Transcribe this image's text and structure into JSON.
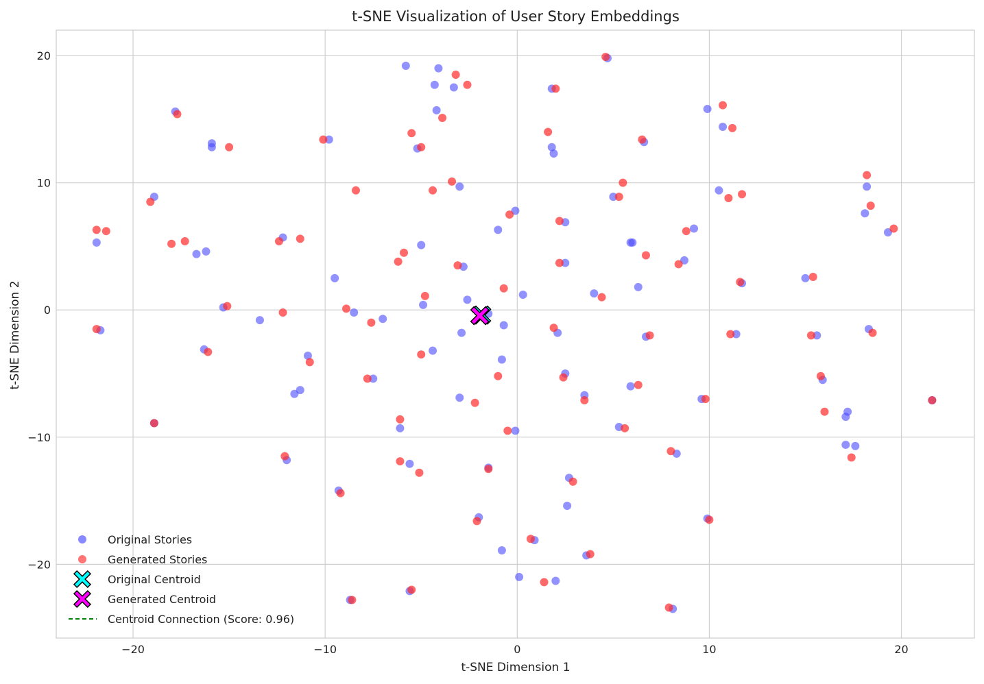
{
  "chart_data": {
    "type": "scatter",
    "title": "t-SNE Visualization of User Story Embeddings",
    "xlabel": "t-SNE Dimension 1",
    "ylabel": "t-SNE Dimension 2",
    "xlim": [
      -24,
      23.8
    ],
    "ylim": [
      -25.8,
      22
    ],
    "xticks": [
      -20,
      -10,
      0,
      10,
      20
    ],
    "yticks": [
      -20,
      -10,
      0,
      10,
      20
    ],
    "grid": true,
    "legend_position": "lower-left",
    "colors": {
      "original": "#4a4aff",
      "generated": "#ff2a2a",
      "original_centroid": "#00ffff",
      "generated_centroid": "#ff00ff",
      "connection": "#008000"
    },
    "series": [
      {
        "name": "Original Stories",
        "points": [
          [
            -5.8,
            19.2
          ],
          [
            -4.1,
            19.0
          ],
          [
            -4.3,
            17.7
          ],
          [
            -3.3,
            17.5
          ],
          [
            -4.2,
            15.7
          ],
          [
            -5.2,
            12.7
          ],
          [
            -3.0,
            9.7
          ],
          [
            -2.8,
            3.4
          ],
          [
            -5.0,
            5.1
          ],
          [
            -4.9,
            0.4
          ],
          [
            -2.6,
            0.8
          ],
          [
            -2.9,
            -1.8
          ],
          [
            -4.4,
            -3.2
          ],
          [
            -3.0,
            -6.9
          ],
          [
            -9.8,
            13.4
          ],
          [
            -9.5,
            2.5
          ],
          [
            -8.5,
            -0.2
          ],
          [
            -7.0,
            -0.7
          ],
          [
            -7.5,
            -5.4
          ],
          [
            -5.6,
            -12.1
          ],
          [
            -6.1,
            -9.3
          ],
          [
            -9.3,
            -14.2
          ],
          [
            -8.7,
            -22.8
          ],
          [
            -5.6,
            -22.1
          ],
          [
            -12.2,
            5.7
          ],
          [
            -13.4,
            -0.8
          ],
          [
            -11.6,
            -6.6
          ],
          [
            -11.3,
            -6.3
          ],
          [
            -10.9,
            -3.6
          ],
          [
            -12.0,
            -11.8
          ],
          [
            -15.3,
            0.2
          ],
          [
            -16.3,
            -3.1
          ],
          [
            -16.2,
            4.6
          ],
          [
            -16.7,
            4.4
          ],
          [
            -15.9,
            13.1
          ],
          [
            -15.9,
            12.8
          ],
          [
            -17.8,
            15.6
          ],
          [
            -18.9,
            8.9
          ],
          [
            -18.9,
            -8.9
          ],
          [
            -21.9,
            5.3
          ],
          [
            -21.7,
            -1.6
          ],
          [
            1.8,
            17.4
          ],
          [
            1.8,
            12.8
          ],
          [
            1.9,
            12.3
          ],
          [
            -0.1,
            7.8
          ],
          [
            -1.0,
            6.3
          ],
          [
            2.5,
            6.9
          ],
          [
            2.5,
            3.7
          ],
          [
            0.3,
            1.2
          ],
          [
            -1.5,
            -0.3
          ],
          [
            -0.7,
            -1.2
          ],
          [
            -0.8,
            -3.9
          ],
          [
            2.1,
            -1.8
          ],
          [
            2.5,
            -5.0
          ],
          [
            3.5,
            -6.7
          ],
          [
            -0.1,
            -9.5
          ],
          [
            -1.5,
            -12.4
          ],
          [
            2.7,
            -13.2
          ],
          [
            2.6,
            -15.4
          ],
          [
            -2.0,
            -16.3
          ],
          [
            -0.8,
            -18.9
          ],
          [
            0.9,
            -18.1
          ],
          [
            0.1,
            -21.0
          ],
          [
            2.0,
            -21.3
          ],
          [
            3.6,
            -19.3
          ],
          [
            4.7,
            19.8
          ],
          [
            9.9,
            15.8
          ],
          [
            10.7,
            14.4
          ],
          [
            6.6,
            13.2
          ],
          [
            5.0,
            8.9
          ],
          [
            5.9,
            5.3
          ],
          [
            6.0,
            5.3
          ],
          [
            10.5,
            9.4
          ],
          [
            9.2,
            6.4
          ],
          [
            8.7,
            3.9
          ],
          [
            6.3,
            1.8
          ],
          [
            4.0,
            1.3
          ],
          [
            6.7,
            -2.1
          ],
          [
            5.9,
            -6.0
          ],
          [
            5.3,
            -9.2
          ],
          [
            9.6,
            -7.0
          ],
          [
            8.3,
            -11.3
          ],
          [
            9.9,
            -16.4
          ],
          [
            8.1,
            -23.5
          ],
          [
            11.4,
            -1.9
          ],
          [
            11.7,
            2.1
          ],
          [
            15.0,
            2.5
          ],
          [
            15.6,
            -2.0
          ],
          [
            15.9,
            -5.5
          ],
          [
            17.1,
            -8.4
          ],
          [
            17.2,
            -8.0
          ],
          [
            17.1,
            -10.6
          ],
          [
            17.6,
            -10.7
          ],
          [
            18.2,
            9.7
          ],
          [
            18.1,
            7.6
          ],
          [
            19.3,
            6.1
          ],
          [
            18.3,
            -1.5
          ],
          [
            21.6,
            -7.1
          ]
        ]
      },
      {
        "name": "Generated Stories",
        "points": [
          [
            -3.2,
            18.5
          ],
          [
            -2.6,
            17.7
          ],
          [
            -5.5,
            13.9
          ],
          [
            -5.0,
            12.8
          ],
          [
            -3.9,
            15.1
          ],
          [
            -3.4,
            10.1
          ],
          [
            -4.4,
            9.4
          ],
          [
            -3.1,
            3.5
          ],
          [
            -6.2,
            3.8
          ],
          [
            -5.9,
            4.5
          ],
          [
            -4.8,
            1.1
          ],
          [
            -5.0,
            -3.5
          ],
          [
            -2.2,
            -7.3
          ],
          [
            -10.1,
            13.4
          ],
          [
            -8.4,
            9.4
          ],
          [
            -8.9,
            0.1
          ],
          [
            -7.6,
            -1.0
          ],
          [
            -7.8,
            -5.4
          ],
          [
            -6.1,
            -8.6
          ],
          [
            -6.1,
            -11.9
          ],
          [
            -5.1,
            -12.8
          ],
          [
            -9.2,
            -14.4
          ],
          [
            -8.6,
            -22.8
          ],
          [
            -5.5,
            -22.0
          ],
          [
            -11.3,
            5.6
          ],
          [
            -12.4,
            5.4
          ],
          [
            -12.2,
            -0.2
          ],
          [
            -10.8,
            -4.1
          ],
          [
            -12.1,
            -11.5
          ],
          [
            -15.1,
            0.3
          ],
          [
            -16.1,
            -3.3
          ],
          [
            -17.3,
            5.4
          ],
          [
            -18.0,
            5.2
          ],
          [
            -15.0,
            12.8
          ],
          [
            -17.7,
            15.4
          ],
          [
            -19.1,
            8.5
          ],
          [
            -18.9,
            -8.9
          ],
          [
            -21.9,
            6.3
          ],
          [
            -21.4,
            6.2
          ],
          [
            -21.9,
            -1.5
          ],
          [
            2.0,
            17.4
          ],
          [
            1.6,
            14.0
          ],
          [
            2.2,
            7.0
          ],
          [
            -0.4,
            7.5
          ],
          [
            2.2,
            3.7
          ],
          [
            -0.7,
            1.7
          ],
          [
            1.9,
            -1.4
          ],
          [
            -1.0,
            -5.2
          ],
          [
            2.4,
            -5.3
          ],
          [
            3.5,
            -7.1
          ],
          [
            -0.5,
            -9.5
          ],
          [
            -1.5,
            -12.5
          ],
          [
            2.9,
            -13.5
          ],
          [
            -2.1,
            -16.6
          ],
          [
            0.7,
            -18.0
          ],
          [
            1.4,
            -21.4
          ],
          [
            3.8,
            -19.2
          ],
          [
            4.6,
            19.9
          ],
          [
            10.7,
            16.1
          ],
          [
            11.2,
            14.3
          ],
          [
            6.5,
            13.4
          ],
          [
            5.5,
            10.0
          ],
          [
            5.3,
            8.9
          ],
          [
            6.7,
            4.3
          ],
          [
            8.8,
            6.2
          ],
          [
            8.4,
            3.6
          ],
          [
            4.4,
            1.0
          ],
          [
            6.9,
            -2.0
          ],
          [
            6.3,
            -5.9
          ],
          [
            5.6,
            -9.3
          ],
          [
            9.8,
            -7.0
          ],
          [
            8.0,
            -11.1
          ],
          [
            10.0,
            -16.5
          ],
          [
            7.9,
            -23.4
          ],
          [
            11.1,
            -1.9
          ],
          [
            11.6,
            2.2
          ],
          [
            11.0,
            8.8
          ],
          [
            11.7,
            9.1
          ],
          [
            15.4,
            2.6
          ],
          [
            15.3,
            -2.0
          ],
          [
            15.8,
            -5.2
          ],
          [
            16.0,
            -8.0
          ],
          [
            17.4,
            -11.6
          ],
          [
            18.2,
            10.6
          ],
          [
            18.4,
            8.2
          ],
          [
            19.6,
            6.4
          ],
          [
            18.5,
            -1.8
          ],
          [
            21.6,
            -7.1
          ]
        ]
      },
      {
        "name": "Original Centroid",
        "points": [
          [
            -1.85,
            -0.4
          ]
        ]
      },
      {
        "name": "Generated Centroid",
        "points": [
          [
            -1.95,
            -0.45
          ]
        ]
      }
    ],
    "legend": [
      {
        "label": "Original Stories",
        "kind": "dot",
        "color": "#4a4aff"
      },
      {
        "label": "Generated Stories",
        "kind": "dot",
        "color": "#ff2a2a"
      },
      {
        "label": "Original Centroid",
        "kind": "x",
        "color": "#00ffff"
      },
      {
        "label": "Generated Centroid",
        "kind": "x",
        "color": "#ff00ff"
      },
      {
        "label": "Centroid Connection (Score: 0.96)",
        "kind": "dash",
        "color": "#008000"
      }
    ]
  }
}
